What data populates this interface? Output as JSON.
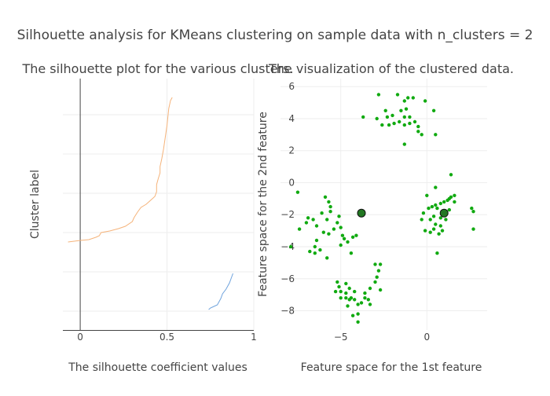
{
  "title": "Silhouette analysis for KMeans clustering on sample data with n_clusters = 2",
  "colors": {
    "text": "#444444",
    "grid": "#eeeeee",
    "axis": "#444444",
    "cluster0": "#f5b37a",
    "cluster1": "#6fa3dd",
    "points": "#11aa11",
    "centers": "#227722"
  },
  "chart_data": [
    {
      "type": "line",
      "title": "The silhouette plot for the various clusters.",
      "xlabel": "The silhouette coefficient values",
      "ylabel": "Cluster label",
      "xlim": [
        -0.1,
        1
      ],
      "ylim": [
        0,
        320
      ],
      "x_ticks": [
        0,
        0.5,
        1
      ],
      "x_tick_labels": [
        "0",
        "0.5",
        "1"
      ],
      "grid": true,
      "vertical_line": 0,
      "series": [
        {
          "values": [
            [
              -0.07,
              112
            ],
            [
              0.0,
              114
            ],
            [
              0.05,
              115
            ],
            [
              0.09,
              118
            ],
            [
              0.11,
              120
            ],
            [
              0.12,
              124
            ],
            [
              0.17,
              126
            ],
            [
              0.22,
              129
            ],
            [
              0.26,
              132
            ],
            [
              0.3,
              138
            ],
            [
              0.31,
              143
            ],
            [
              0.33,
              150
            ],
            [
              0.35,
              156
            ],
            [
              0.38,
              160
            ],
            [
              0.41,
              166
            ],
            [
              0.43,
              170
            ],
            [
              0.44,
              176
            ],
            [
              0.44,
              185
            ],
            [
              0.45,
              193
            ],
            [
              0.46,
              200
            ],
            [
              0.46,
              208
            ],
            [
              0.47,
              218
            ],
            [
              0.48,
              230
            ],
            [
              0.49,
              245
            ],
            [
              0.5,
              260
            ],
            [
              0.51,
              282
            ],
            [
              0.52,
              292
            ],
            [
              0.53,
              296
            ]
          ]
        },
        {
          "values": [
            [
              0.74,
              26
            ],
            [
              0.75,
              28
            ],
            [
              0.77,
              30
            ],
            [
              0.79,
              32
            ],
            [
              0.8,
              36
            ],
            [
              0.81,
              40
            ],
            [
              0.82,
              46
            ],
            [
              0.84,
              52
            ],
            [
              0.85,
              56
            ],
            [
              0.86,
              60
            ],
            [
              0.87,
              66
            ],
            [
              0.88,
              72
            ]
          ]
        }
      ]
    },
    {
      "type": "scatter",
      "title": "The visualization of the clustered data.",
      "xlabel": "Feature space for the 1st feature",
      "ylabel": "Feature space for the 2nd feature",
      "xlim": [
        -8.5,
        3.5
      ],
      "ylim": [
        -9.2,
        6.5
      ],
      "x_ticks": [
        -5,
        0
      ],
      "x_tick_labels": [
        "−5",
        "0"
      ],
      "y_ticks": [
        6,
        4,
        2,
        0,
        -2,
        -4,
        -6,
        -8
      ],
      "y_tick_labels": [
        "6",
        "4",
        "2",
        "0",
        "−2",
        "−4",
        "−6",
        "−8"
      ],
      "grid": true,
      "points": [
        [
          -2.8,
          5.5
        ],
        [
          -2.4,
          4.5
        ],
        [
          -2.2,
          3.6
        ],
        [
          -2.6,
          3.6
        ],
        [
          -2.0,
          4.2
        ],
        [
          -1.7,
          5.5
        ],
        [
          -1.3,
          5.1
        ],
        [
          -1.1,
          5.3
        ],
        [
          -0.8,
          5.3
        ],
        [
          -0.1,
          5.1
        ],
        [
          0.4,
          4.5
        ],
        [
          -1.2,
          4.6
        ],
        [
          -1.5,
          4.5
        ],
        [
          -1.0,
          4.1
        ],
        [
          -1.0,
          3.7
        ],
        [
          -0.5,
          3.5
        ],
        [
          -0.7,
          3.8
        ],
        [
          -1.3,
          3.6
        ],
        [
          -1.6,
          3.8
        ],
        [
          -1.9,
          3.7
        ],
        [
          -0.5,
          3.2
        ],
        [
          -0.3,
          3.0
        ],
        [
          0.5,
          3.0
        ],
        [
          -1.3,
          2.4
        ],
        [
          -3.7,
          4.1
        ],
        [
          -2.9,
          4.0
        ],
        [
          -2.3,
          4.1
        ],
        [
          -1.3,
          4.1
        ],
        [
          -7.5,
          -0.6
        ],
        [
          -5.9,
          -0.9
        ],
        [
          -5.7,
          -1.2
        ],
        [
          -5.6,
          -1.5
        ],
        [
          -5.6,
          -1.8
        ],
        [
          -6.1,
          -1.9
        ],
        [
          -6.9,
          -2.2
        ],
        [
          -7.0,
          -2.5
        ],
        [
          -6.6,
          -2.3
        ],
        [
          -6.4,
          -2.7
        ],
        [
          -5.8,
          -2.3
        ],
        [
          -5.1,
          -2.1
        ],
        [
          -5.2,
          -2.5
        ],
        [
          -5.0,
          -2.8
        ],
        [
          -5.4,
          -2.9
        ],
        [
          -5.7,
          -3.2
        ],
        [
          -6.0,
          -3.1
        ],
        [
          -4.9,
          -3.3
        ],
        [
          -4.8,
          -3.5
        ],
        [
          -4.3,
          -3.4
        ],
        [
          -4.1,
          -3.3
        ],
        [
          -4.6,
          -3.7
        ],
        [
          -5.0,
          -3.9
        ],
        [
          -6.4,
          -3.6
        ],
        [
          -6.5,
          -4.0
        ],
        [
          -6.5,
          -4.4
        ],
        [
          -6.8,
          -4.3
        ],
        [
          -7.9,
          -4.0
        ],
        [
          -5.8,
          -4.7
        ],
        [
          -4.4,
          -4.4
        ],
        [
          -6.2,
          -4.2
        ],
        [
          -7.4,
          -2.9
        ],
        [
          -5.2,
          -6.2
        ],
        [
          -5.1,
          -6.5
        ],
        [
          -4.7,
          -6.3
        ],
        [
          -4.5,
          -6.6
        ],
        [
          -4.2,
          -6.8
        ],
        [
          -4.7,
          -6.9
        ],
        [
          -5.0,
          -6.8
        ],
        [
          -5.3,
          -6.8
        ],
        [
          -5.0,
          -7.2
        ],
        [
          -4.7,
          -7.2
        ],
        [
          -4.4,
          -7.2
        ],
        [
          -4.2,
          -7.3
        ],
        [
          -4.6,
          -7.7
        ],
        [
          -4.0,
          -7.6
        ],
        [
          -3.8,
          -7.5
        ],
        [
          -3.6,
          -7.2
        ],
        [
          -3.6,
          -6.9
        ],
        [
          -3.3,
          -6.6
        ],
        [
          -3.0,
          -6.2
        ],
        [
          -2.9,
          -5.9
        ],
        [
          -2.8,
          -5.5
        ],
        [
          -3.0,
          -5.1
        ],
        [
          -2.7,
          -5.1
        ],
        [
          -2.7,
          -6.7
        ],
        [
          -3.3,
          -7.6
        ],
        [
          -3.4,
          -7.3
        ],
        [
          -4.5,
          -7.3
        ],
        [
          -4.0,
          -8.2
        ],
        [
          -4.3,
          -8.3
        ],
        [
          -4.0,
          -8.7
        ],
        [
          1.4,
          0.5
        ],
        [
          1.4,
          -0.9
        ],
        [
          1.6,
          -0.8
        ],
        [
          1.3,
          -1.0
        ],
        [
          1.6,
          -1.2
        ],
        [
          1.0,
          -1.2
        ],
        [
          0.8,
          -1.3
        ],
        [
          0.6,
          -1.6
        ],
        [
          0.5,
          -1.4
        ],
        [
          0.3,
          -1.5
        ],
        [
          0.0,
          -0.8
        ],
        [
          0.5,
          -0.3
        ],
        [
          -0.2,
          -1.9
        ],
        [
          0.1,
          -1.6
        ],
        [
          0.4,
          -2.1
        ],
        [
          0.2,
          -2.3
        ],
        [
          0.5,
          -2.6
        ],
        [
          0.8,
          -2.7
        ],
        [
          0.9,
          -3.0
        ],
        [
          0.7,
          -3.2
        ],
        [
          0.4,
          -2.9
        ],
        [
          -0.3,
          -2.3
        ],
        [
          -0.1,
          -3.0
        ],
        [
          0.2,
          -3.1
        ],
        [
          1.1,
          -2.3
        ],
        [
          2.6,
          -1.6
        ],
        [
          2.7,
          -1.8
        ],
        [
          2.7,
          -2.9
        ],
        [
          1.3,
          -1.7
        ],
        [
          0.8,
          -2.2
        ],
        [
          0.6,
          -4.4
        ],
        [
          1.2,
          -1.1
        ]
      ],
      "centers": [
        [
          -3.8,
          -1.9
        ],
        [
          1.0,
          -1.9
        ]
      ]
    }
  ]
}
